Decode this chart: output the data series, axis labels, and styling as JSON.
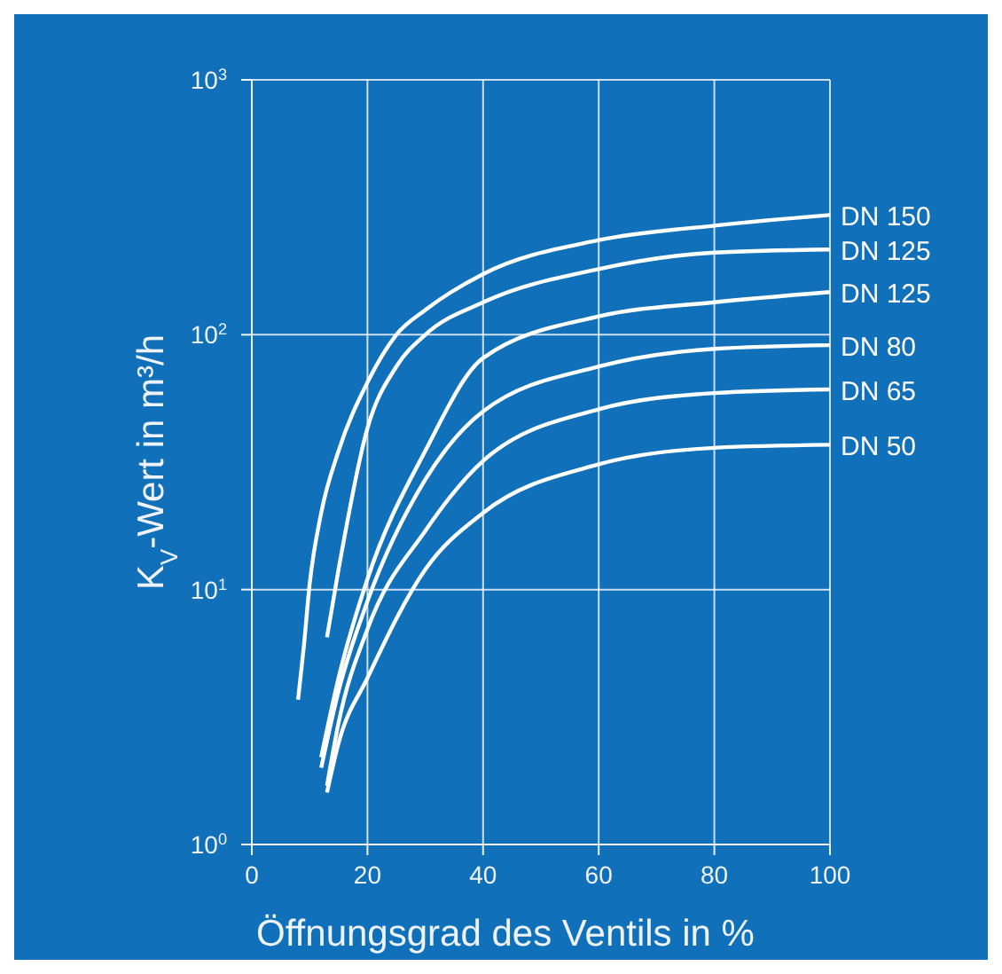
{
  "chart_data": {
    "type": "line",
    "xlabel": "Öffnungsgrad des Ventils in %",
    "ylabel": "K$_{V}$-Wert in m³/h",
    "log": "y",
    "grid": true,
    "legend": false,
    "marker": "none",
    "line_style": "solid",
    "xlim": [
      0,
      100
    ],
    "xticks": [
      0,
      20,
      40,
      60,
      80,
      100
    ],
    "ylim": [
      1,
      1000
    ],
    "yticks": [
      {
        "value": 1,
        "label": "10$^{0}$"
      },
      {
        "value": 10,
        "label": "10$^{1}$"
      },
      {
        "value": 100,
        "label": "10$^{2}$"
      },
      {
        "value": 1000,
        "label": "10$^{3}$"
      }
    ],
    "series": [
      {
        "name": "DN 150",
        "color": "#ffffff",
        "x": [
          8,
          9,
          10,
          12,
          15,
          20,
          25,
          30,
          40,
          60,
          80,
          100
        ],
        "values": [
          3.7,
          6,
          10.5,
          20,
          35,
          65,
          100,
          125,
          173,
          235,
          268,
          295
        ]
      },
      {
        "name": "DN 125",
        "color": "#ffffff",
        "x": [
          13,
          15,
          20,
          25,
          30,
          40,
          60,
          80,
          100
        ],
        "values": [
          6.5,
          12,
          43,
          75,
          100,
          134,
          181,
          210,
          216
        ]
      },
      {
        "name": "DN 125",
        "color": "#ffffff",
        "x": [
          12,
          15,
          20,
          30,
          40,
          60,
          80,
          100
        ],
        "values": [
          2.2,
          4.5,
          11,
          35,
          81,
          118,
          134,
          147
        ]
      },
      {
        "name": "DN 80",
        "color": "#ffffff",
        "x": [
          12,
          15,
          20,
          30,
          40,
          60,
          80,
          100
        ],
        "values": [
          2,
          4,
          9,
          27,
          50,
          75,
          88,
          91
        ]
      },
      {
        "name": "DN 65",
        "color": "#ffffff",
        "x": [
          13,
          15,
          20,
          30,
          40,
          60,
          80,
          100
        ],
        "values": [
          1.7,
          3,
          7,
          17,
          32,
          51,
          59,
          61
        ]
      },
      {
        "name": "DN 50",
        "color": "#ffffff",
        "x": [
          13,
          15,
          20,
          30,
          40,
          60,
          80,
          100
        ],
        "values": [
          1.6,
          2.5,
          4.5,
          12,
          20,
          31,
          36,
          37
        ]
      }
    ]
  }
}
